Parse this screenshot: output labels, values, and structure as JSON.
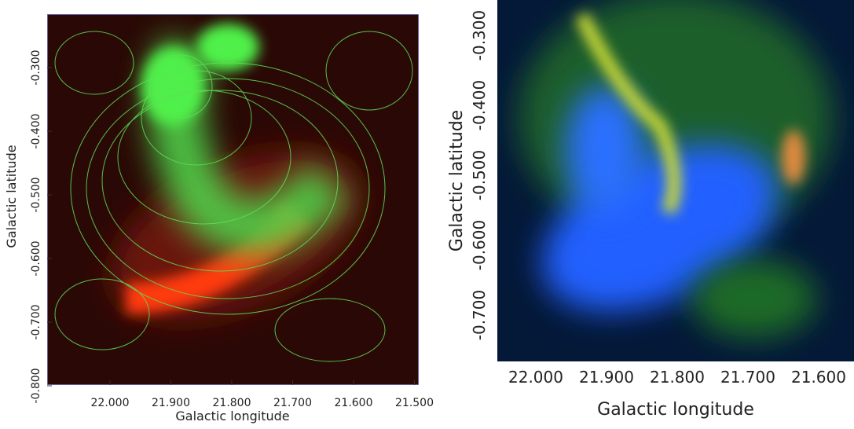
{
  "panels": [
    {
      "x_label": "Galactic longitude",
      "y_label": "Galactic latitude",
      "x_ticks": [
        "22.000",
        "21.900",
        "21.800",
        "21.700",
        "21.600",
        "21.500"
      ],
      "y_ticks": [
        "-0.300",
        "-0.400",
        "-0.500",
        "-0.600",
        "-0.700",
        "-0.800"
      ]
    },
    {
      "x_label": "Galactic longitude",
      "y_label": "Galactic latitude",
      "x_ticks": [
        "22.000",
        "21.900",
        "21.800",
        "21.700",
        "21.600"
      ],
      "y_ticks": [
        "-0.300",
        "-0.400",
        "-0.500",
        "-0.600",
        "-0.700"
      ]
    }
  ]
}
